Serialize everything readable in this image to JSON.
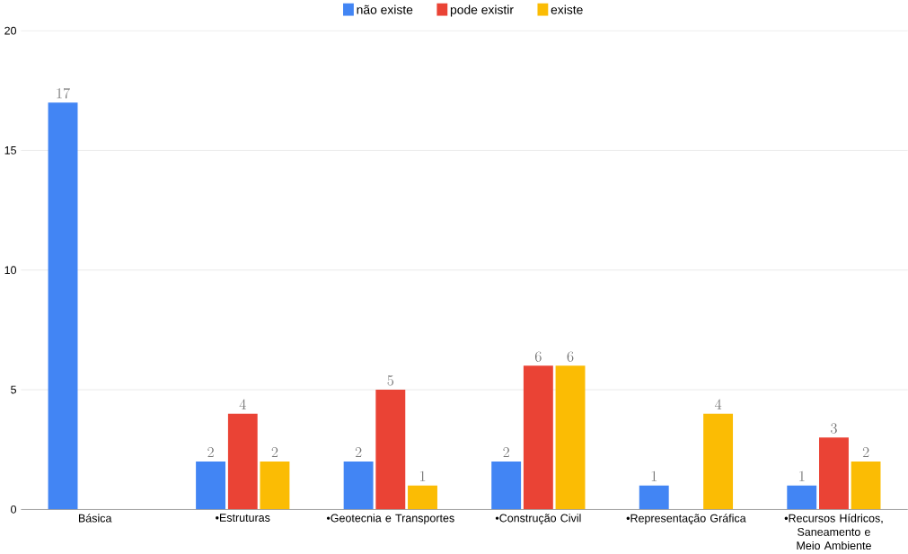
{
  "chart_data": {
    "type": "bar",
    "categories": [
      "Básica",
      "•Estruturas",
      "•Geotecnia e Transportes",
      "•Construção Civil",
      "•Representação Gráfica",
      "•Recursos Hídricos, Saneamento e Meio Ambiente"
    ],
    "series": [
      {
        "name": "não existe",
        "color": "#4285f4",
        "values": [
          17,
          2,
          2,
          2,
          1,
          1
        ]
      },
      {
        "name": "pode existir",
        "color": "#ea4335",
        "values": [
          null,
          4,
          5,
          6,
          null,
          3
        ]
      },
      {
        "name": "existe",
        "color": "#fbbc04",
        "values": [
          null,
          2,
          1,
          6,
          4,
          2
        ]
      }
    ],
    "ylim": [
      0,
      20
    ],
    "yticks": [
      0,
      5,
      10,
      15,
      20
    ],
    "grid": "y",
    "legend": "top",
    "data_labels": true
  }
}
